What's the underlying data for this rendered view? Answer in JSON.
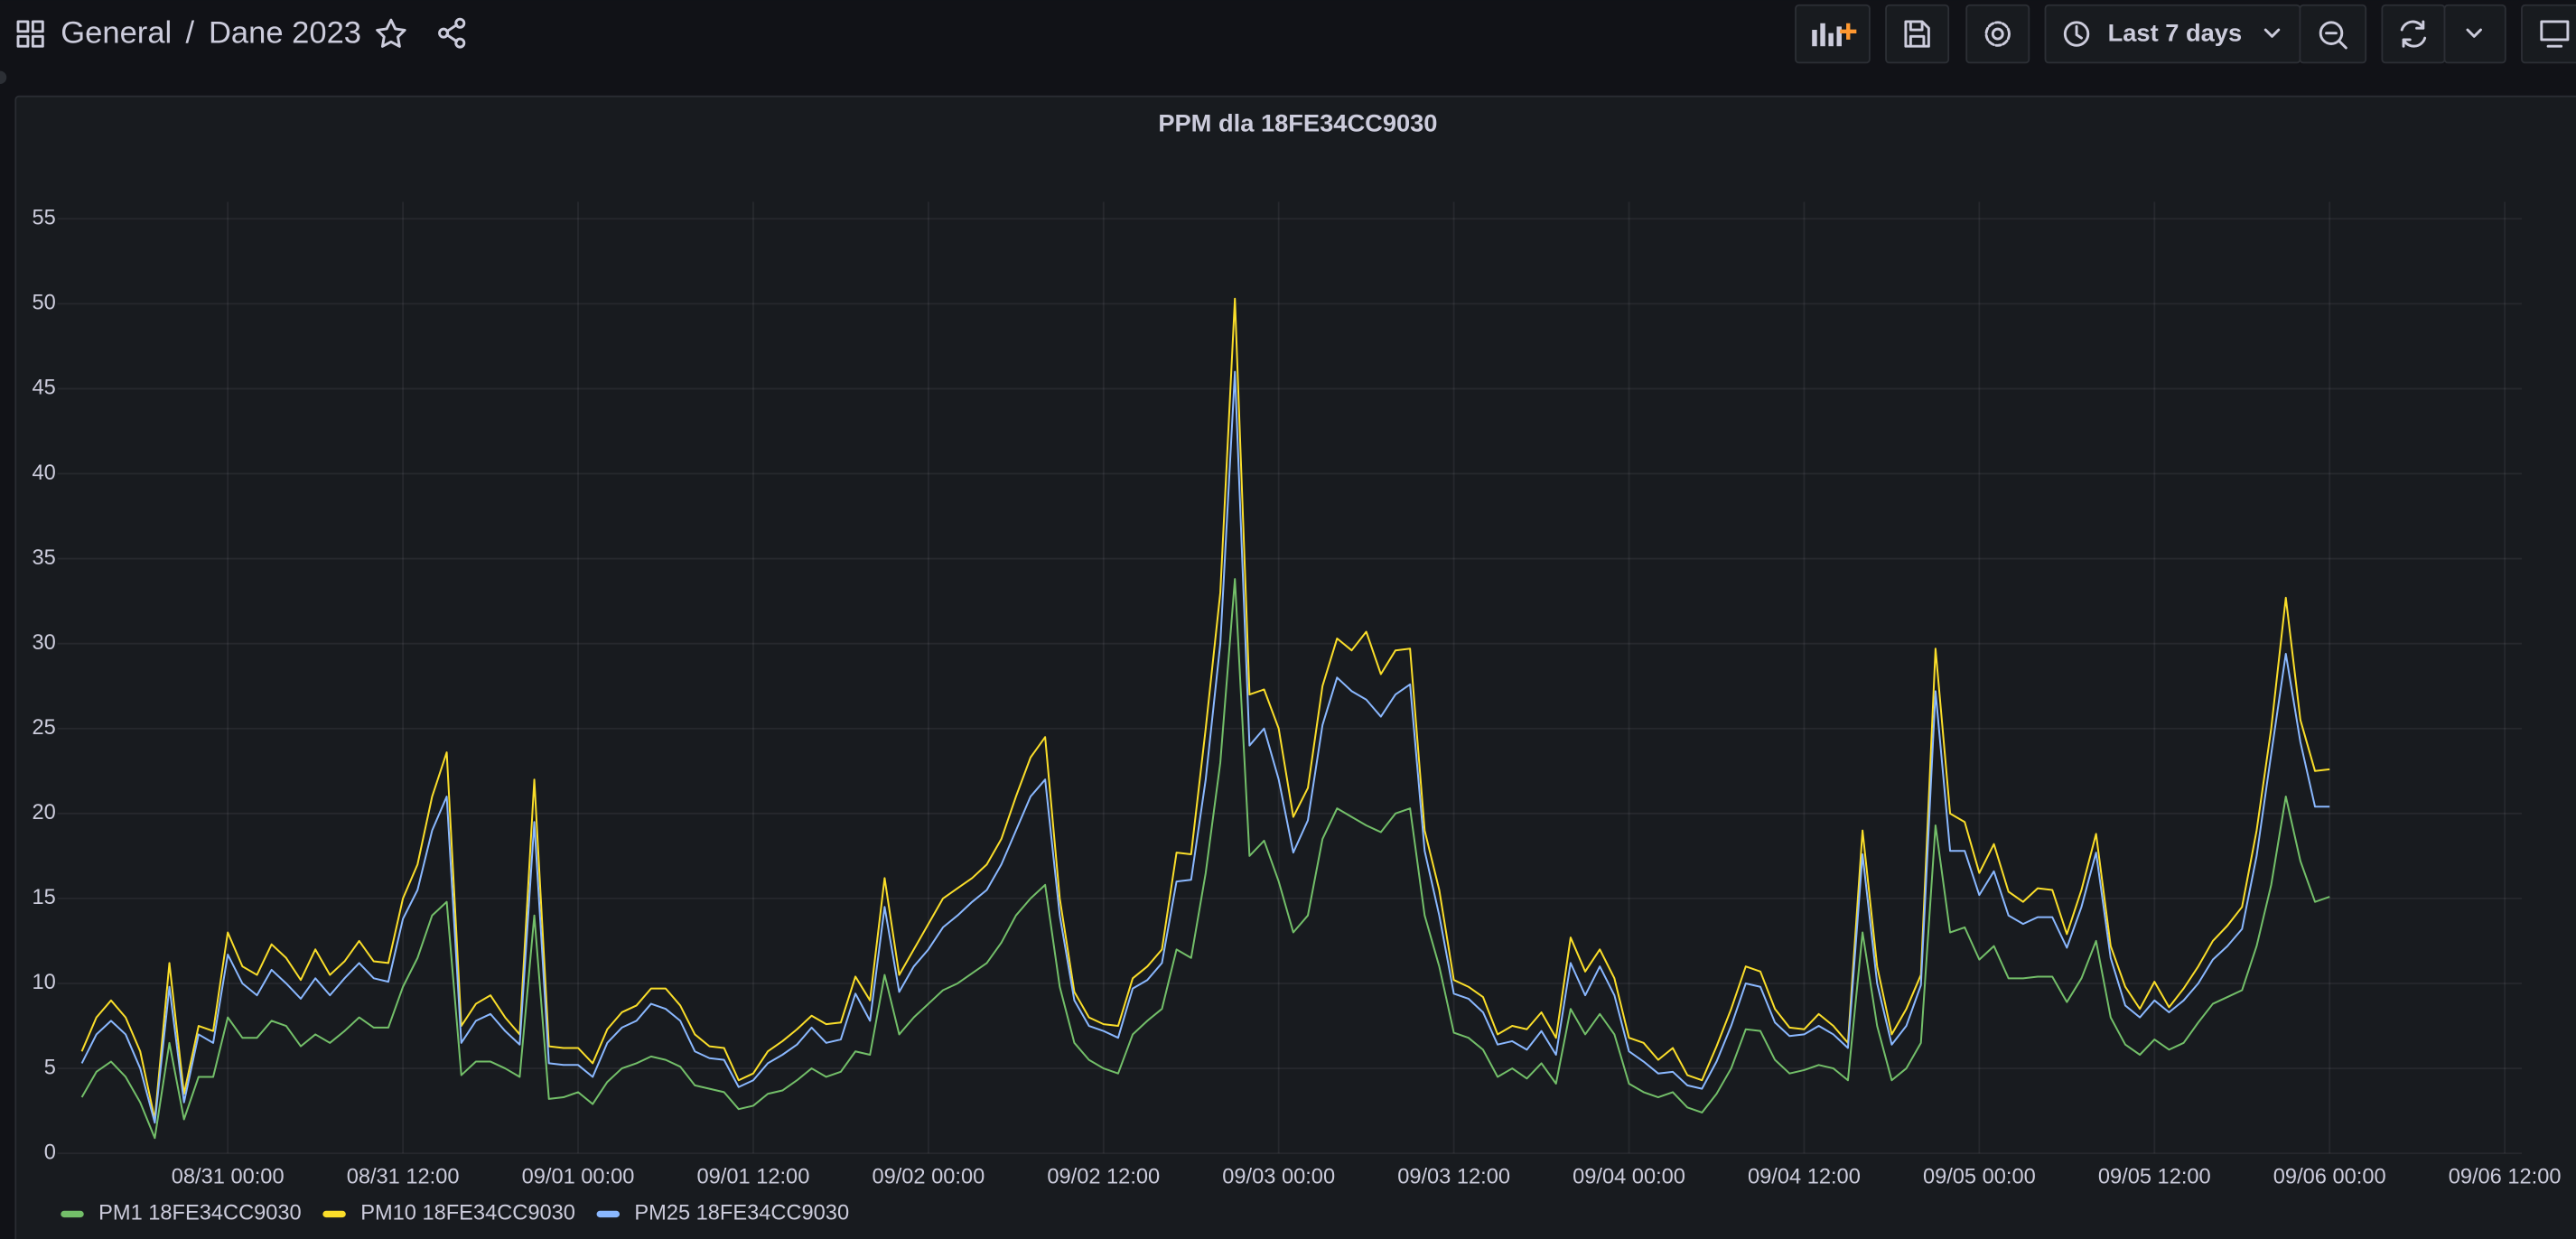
{
  "header": {
    "breadcrumb": [
      "General",
      "Dane 2023"
    ],
    "separator": "/",
    "time_range": "Last 7 days"
  },
  "chart_data": {
    "type": "line",
    "title": "PPM dla 18FE34CC9030",
    "x": [
      "08/30 14:00",
      "08/30 15:00",
      "08/30 16:00",
      "08/30 17:00",
      "08/30 18:00",
      "08/30 19:00",
      "08/30 20:00",
      "08/30 21:00",
      "08/30 22:00",
      "08/30 23:00",
      "08/31 00:00",
      "08/31 01:00",
      "08/31 02:00",
      "08/31 03:00",
      "08/31 04:00",
      "08/31 05:00",
      "08/31 06:00",
      "08/31 07:00",
      "08/31 08:00",
      "08/31 09:00",
      "08/31 10:00",
      "08/31 11:00",
      "08/31 12:00",
      "08/31 13:00",
      "08/31 14:00",
      "08/31 15:00",
      "08/31 16:00",
      "08/31 17:00",
      "08/31 18:00",
      "08/31 19:00",
      "08/31 20:00",
      "08/31 21:00",
      "08/31 22:00",
      "08/31 23:00",
      "09/01 00:00",
      "09/01 01:00",
      "09/01 02:00",
      "09/01 03:00",
      "09/01 04:00",
      "09/01 05:00",
      "09/01 06:00",
      "09/01 07:00",
      "09/01 08:00",
      "09/01 09:00",
      "09/01 10:00",
      "09/01 11:00",
      "09/01 12:00",
      "09/01 13:00",
      "09/01 14:00",
      "09/01 15:00",
      "09/01 16:00",
      "09/01 17:00",
      "09/01 18:00",
      "09/01 19:00",
      "09/01 20:00",
      "09/01 21:00",
      "09/01 22:00",
      "09/01 23:00",
      "09/02 00:00",
      "09/02 01:00",
      "09/02 02:00",
      "09/02 03:00",
      "09/02 04:00",
      "09/02 05:00",
      "09/02 06:00",
      "09/02 07:00",
      "09/02 08:00",
      "09/02 09:00",
      "09/02 10:00",
      "09/02 11:00",
      "09/02 12:00",
      "09/02 13:00",
      "09/02 14:00",
      "09/02 15:00",
      "09/02 16:00",
      "09/02 17:00",
      "09/02 18:00",
      "09/02 19:00",
      "09/02 20:00",
      "09/02 21:00",
      "09/02 22:00",
      "09/02 23:00",
      "09/03 00:00",
      "09/03 01:00",
      "09/03 02:00",
      "09/03 03:00",
      "09/03 04:00",
      "09/03 05:00",
      "09/03 06:00",
      "09/03 07:00",
      "09/03 08:00",
      "09/03 09:00",
      "09/03 10:00",
      "09/03 11:00",
      "09/03 12:00",
      "09/03 13:00",
      "09/03 14:00",
      "09/03 15:00",
      "09/03 16:00",
      "09/03 17:00",
      "09/03 18:00",
      "09/03 19:00",
      "09/03 20:00",
      "09/03 21:00",
      "09/03 22:00",
      "09/03 23:00",
      "09/04 00:00",
      "09/04 01:00",
      "09/04 02:00",
      "09/04 03:00",
      "09/04 04:00",
      "09/04 05:00",
      "09/04 06:00",
      "09/04 07:00",
      "09/04 08:00",
      "09/04 09:00",
      "09/04 10:00",
      "09/04 11:00",
      "09/04 12:00",
      "09/04 13:00",
      "09/04 14:00",
      "09/04 15:00",
      "09/04 16:00",
      "09/04 17:00",
      "09/04 18:00",
      "09/04 19:00",
      "09/04 20:00",
      "09/04 21:00",
      "09/04 22:00",
      "09/04 23:00",
      "09/05 00:00",
      "09/05 01:00",
      "09/05 02:00",
      "09/05 03:00",
      "09/05 04:00",
      "09/05 05:00",
      "09/05 06:00",
      "09/05 07:00",
      "09/05 08:00",
      "09/05 09:00",
      "09/05 10:00",
      "09/05 11:00",
      "09/05 12:00",
      "09/05 13:00",
      "09/05 14:00",
      "09/05 15:00",
      "09/05 16:00",
      "09/05 17:00",
      "09/05 18:00",
      "09/05 19:00",
      "09/05 20:00",
      "09/05 21:00",
      "09/05 22:00",
      "09/05 23:00",
      "09/06 00:00"
    ],
    "series": [
      {
        "name": "PM1 18FE34CC9030",
        "color": "#73bf69",
        "values": [
          3.3,
          4.8,
          5.4,
          4.5,
          3,
          0.9,
          6.5,
          2,
          4.5,
          4.5,
          8,
          6.8,
          6.8,
          7.8,
          7.5,
          6.3,
          7,
          6.5,
          7.2,
          8,
          7.4,
          7.4,
          9.8,
          11.5,
          14,
          14.8,
          4.6,
          5.4,
          5.4,
          5,
          4.5,
          14,
          3.2,
          3.3,
          3.6,
          2.9,
          4.2,
          5,
          5.3,
          5.7,
          5.5,
          5.1,
          4,
          3.8,
          3.6,
          2.6,
          2.8,
          3.5,
          3.7,
          4.3,
          5,
          4.5,
          4.8,
          6,
          5.8,
          10.5,
          7,
          8,
          8.8,
          9.6,
          10,
          10.6,
          11.2,
          12.4,
          14,
          15,
          15.8,
          9.8,
          6.5,
          5.5,
          5,
          4.7,
          7,
          7.8,
          8.5,
          12,
          11.5,
          16.5,
          23,
          33.8,
          17.5,
          18.4,
          16,
          13,
          14,
          18.5,
          20.3,
          19.8,
          19.3,
          18.9,
          20,
          20.3,
          14,
          11,
          7.1,
          6.8,
          6.1,
          4.5,
          5,
          4.4,
          5.3,
          4.1,
          8.5,
          7,
          8.2,
          7,
          4.1,
          3.6,
          3.3,
          3.6,
          2.7,
          2.4,
          3.5,
          5,
          7.3,
          7.2,
          5.5,
          4.7,
          4.9,
          5.2,
          5,
          4.3,
          13,
          7.5,
          4.3,
          5,
          6.5,
          19.3,
          13,
          13.3,
          11.4,
          12.2,
          10.3,
          10.3,
          10.4,
          10.4,
          8.9,
          10.3,
          12.5,
          8,
          6.4,
          5.8,
          6.7,
          6.1,
          6.5,
          7.7,
          8.8,
          9.2,
          9.6,
          12.2,
          15.8,
          21,
          17.2,
          14.8,
          15.1
        ]
      },
      {
        "name": "PM10 18FE34CC9030",
        "color": "#fade2a",
        "values": [
          6,
          8,
          9,
          8,
          6,
          2,
          11.2,
          3.5,
          7.5,
          7.2,
          13,
          11,
          10.5,
          12.3,
          11.5,
          10.2,
          12,
          10.5,
          11.3,
          12.5,
          11.3,
          11.2,
          15,
          17,
          21,
          23.6,
          7.5,
          8.8,
          9.3,
          8,
          7,
          22,
          6.3,
          6.2,
          6.2,
          5.3,
          7.3,
          8.3,
          8.7,
          9.7,
          9.7,
          8.7,
          7,
          6.3,
          6.2,
          4.3,
          4.7,
          6,
          6.6,
          7.3,
          8.1,
          7.6,
          7.7,
          10.4,
          9,
          16.2,
          10.5,
          12,
          13.5,
          15,
          15.6,
          16.2,
          17,
          18.5,
          21,
          23.3,
          24.5,
          15,
          9.5,
          8,
          7.6,
          7.5,
          10.3,
          11,
          12,
          17.7,
          17.6,
          25,
          33,
          50.3,
          27,
          27.3,
          25,
          19.8,
          21.5,
          27.5,
          30.3,
          29.6,
          30.7,
          28.2,
          29.6,
          29.7,
          19,
          15.5,
          10.2,
          9.8,
          9.2,
          7,
          7.5,
          7.3,
          8.3,
          6.8,
          12.7,
          10.7,
          12,
          10.3,
          6.8,
          6.5,
          5.5,
          6.2,
          4.6,
          4.3,
          6.3,
          8.5,
          11,
          10.7,
          8.5,
          7.4,
          7.3,
          8.2,
          7.5,
          6.5,
          19,
          11,
          7,
          8.5,
          10.5,
          29.7,
          20,
          19.5,
          16.5,
          18.2,
          15.4,
          14.8,
          15.6,
          15.5,
          12.9,
          15.5,
          18.8,
          12.2,
          9.8,
          8.5,
          10.1,
          8.6,
          9.7,
          11,
          12.5,
          13.4,
          14.5,
          19,
          25,
          32.7,
          25.5,
          22.5,
          22.6
        ]
      },
      {
        "name": "PM25 18FE34CC9030",
        "color": "#8ab8ff",
        "values": [
          5.3,
          7,
          7.8,
          7,
          5,
          1.8,
          9.8,
          3,
          7,
          6.5,
          11.7,
          10,
          9.3,
          10.8,
          10,
          9.1,
          10.3,
          9.3,
          10.3,
          11.2,
          10.3,
          10.1,
          13.8,
          15.5,
          19,
          21,
          6.5,
          7.8,
          8.2,
          7.2,
          6.4,
          19.5,
          5.3,
          5.2,
          5.2,
          4.5,
          6.5,
          7.4,
          7.8,
          8.8,
          8.5,
          7.8,
          6,
          5.6,
          5.5,
          3.9,
          4.3,
          5.3,
          5.8,
          6.4,
          7.4,
          6.5,
          6.7,
          9.4,
          7.8,
          14.5,
          9.5,
          11,
          12,
          13.3,
          14,
          14.8,
          15.5,
          17,
          19,
          21,
          22,
          14,
          9,
          7.5,
          7.2,
          6.8,
          9.7,
          10.2,
          11.2,
          16,
          16.1,
          22,
          30,
          46,
          24,
          25,
          22,
          17.7,
          19.6,
          25.2,
          28,
          27.2,
          26.7,
          25.7,
          27,
          27.6,
          17.8,
          14,
          9.4,
          9.1,
          8.3,
          6.4,
          6.6,
          6.1,
          7.2,
          5.8,
          11.2,
          9.3,
          11,
          9.3,
          6,
          5.4,
          4.7,
          4.8,
          4,
          3.8,
          5.4,
          7.5,
          10,
          9.8,
          7.7,
          6.9,
          7,
          7.5,
          7,
          6.2,
          17.6,
          10,
          6.4,
          7.5,
          9.9,
          27.2,
          17.8,
          17.8,
          15.2,
          16.6,
          14,
          13.5,
          13.9,
          13.9,
          12.1,
          14.5,
          17.7,
          11.5,
          8.7,
          8,
          9,
          8.3,
          9,
          10,
          11.4,
          12.2,
          13.2,
          17.5,
          23.5,
          29.4,
          24.2,
          20.4,
          20.4
        ]
      }
    ],
    "xlim": [
      "08/30 12:20",
      "09/06 13:10"
    ],
    "xticks": [
      "08/31 00:00",
      "08/31 12:00",
      "09/01 00:00",
      "09/01 12:00",
      "09/02 00:00",
      "09/02 12:00",
      "09/03 00:00",
      "09/03 12:00",
      "09/04 00:00",
      "09/04 12:00",
      "09/05 00:00",
      "09/05 12:00",
      "09/06 00:00",
      "09/06 12:00"
    ],
    "ylim": [
      0,
      56
    ],
    "yticks": [
      0,
      5,
      10,
      15,
      20,
      25,
      30,
      35,
      40,
      45,
      50,
      55
    ],
    "grid": true,
    "legend": "bottom"
  }
}
